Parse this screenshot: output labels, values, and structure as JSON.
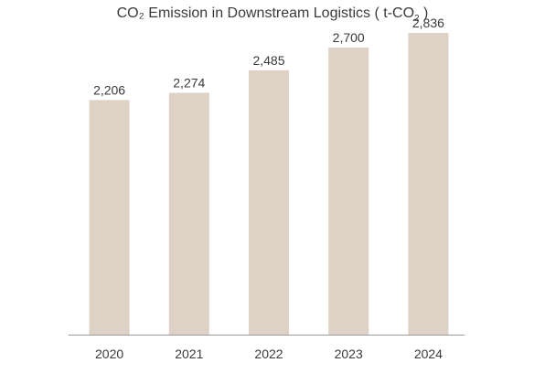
{
  "chart_data": {
    "type": "bar",
    "title_main": "CO₂ Emission in Downstream Logistics ( t-CO",
    "title_sub": "2",
    "title_end": " )",
    "categories": [
      "2020",
      "2021",
      "2022",
      "2023",
      "2024"
    ],
    "values": [
      2206,
      2274,
      2485,
      2700,
      2836
    ],
    "value_labels": [
      "2,206",
      "2,274",
      "2,485",
      "2,700",
      "2,836"
    ],
    "ylim": [
      0,
      3000
    ],
    "grid": false,
    "legend": "none",
    "bar_color": "#ddd2c5",
    "axis_color": "#9a9a9a"
  }
}
